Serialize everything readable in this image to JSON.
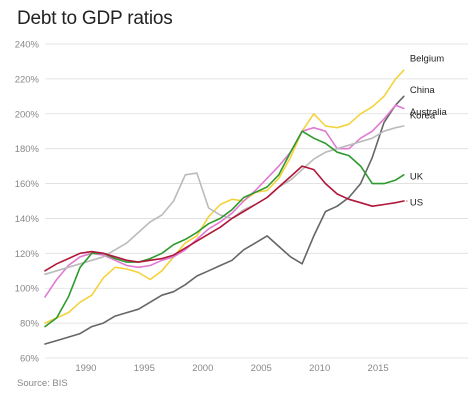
{
  "chart_data": {
    "type": "line",
    "title": "Debt to GDP ratios",
    "source": "Source: BIS",
    "xlabel": "",
    "ylabel": "",
    "xlim": [
      1986.5,
      2017.3
    ],
    "ylim": [
      60,
      240
    ],
    "y_ticks": [
      60,
      80,
      100,
      120,
      140,
      160,
      180,
      200,
      220,
      240
    ],
    "y_tick_labels": [
      "60%",
      "80%",
      "100%",
      "120%",
      "140%",
      "160%",
      "180%",
      "200%",
      "220%",
      "240%"
    ],
    "x_ticks": [
      1990,
      1995,
      2000,
      2005,
      2010,
      2015
    ],
    "x_tick_labels": [
      "1990",
      "1995",
      "2000",
      "2005",
      "2010",
      "2015"
    ],
    "grid": true,
    "legend": "direct labels at right",
    "series": [
      {
        "name": "Belgium",
        "color": "#f5d23c",
        "x": [
          1986.5,
          1987.5,
          1988.5,
          1989.5,
          1990.5,
          1991.5,
          1992.5,
          1993.5,
          1994.5,
          1995.5,
          1996.5,
          1997.5,
          1998.5,
          1999.5,
          2000.5,
          2001.5,
          2002.5,
          2003.5,
          2004.5,
          2005.5,
          2006.5,
          2007.5,
          2008.5,
          2009.5,
          2010.5,
          2011.5,
          2012.5,
          2013.5,
          2014.5,
          2015.5,
          2016.5,
          2017.2
        ],
        "y": [
          80,
          83,
          86,
          92,
          96,
          106,
          112,
          111,
          109,
          105,
          110,
          118,
          126,
          130,
          141,
          148,
          151,
          150,
          155,
          156,
          163,
          175,
          190,
          200,
          193,
          192,
          194,
          200,
          204,
          210,
          220,
          225
        ]
      },
      {
        "name": "China",
        "color": "#666666",
        "x": [
          1986.5,
          1987.5,
          1988.5,
          1989.5,
          1990.5,
          1991.5,
          1992.5,
          1993.5,
          1994.5,
          1995.5,
          1996.5,
          1997.5,
          1998.5,
          1999.5,
          2000.5,
          2001.5,
          2002.5,
          2003.5,
          2004.5,
          2005.5,
          2006.5,
          2007.5,
          2008.5,
          2009.5,
          2010.5,
          2011.5,
          2012.5,
          2013.5,
          2014.5,
          2015.5,
          2016.5,
          2017.2
        ],
        "y": [
          68,
          70,
          72,
          74,
          78,
          80,
          84,
          86,
          88,
          92,
          96,
          98,
          102,
          107,
          110,
          113,
          116,
          122,
          126,
          130,
          124,
          118,
          114,
          130,
          144,
          147,
          152,
          160,
          175,
          195,
          205,
          210
        ]
      },
      {
        "name": "Australia",
        "color": "#e07ad2",
        "x": [
          1986.5,
          1987.5,
          1988.5,
          1989.5,
          1990.5,
          1991.5,
          1992.5,
          1993.5,
          1994.5,
          1995.5,
          1996.5,
          1997.5,
          1998.5,
          1999.5,
          2000.5,
          2001.5,
          2002.5,
          2003.5,
          2004.5,
          2005.5,
          2006.5,
          2007.5,
          2008.5,
          2009.5,
          2010.5,
          2011.5,
          2012.5,
          2013.5,
          2014.5,
          2015.5,
          2016.5,
          2017.2
        ],
        "y": [
          95,
          105,
          113,
          118,
          120,
          119,
          116,
          113,
          112,
          113,
          116,
          118,
          122,
          128,
          134,
          138,
          143,
          150,
          156,
          163,
          170,
          178,
          190,
          192,
          190,
          180,
          180,
          186,
          190,
          197,
          205,
          203
        ]
      },
      {
        "name": "Korea",
        "color": "#bbbbbb",
        "x": [
          1986.5,
          1987.5,
          1988.5,
          1989.5,
          1990.5,
          1991.5,
          1992.5,
          1993.5,
          1994.5,
          1995.5,
          1996.5,
          1997.5,
          1998.5,
          1999.5,
          2000.5,
          2001.5,
          2002.5,
          2003.5,
          2004.5,
          2005.5,
          2006.5,
          2007.5,
          2008.5,
          2009.5,
          2010.5,
          2011.5,
          2012.5,
          2013.5,
          2014.5,
          2015.5,
          2016.5,
          2017.2
        ],
        "y": [
          108,
          110,
          112,
          114,
          116,
          118,
          122,
          126,
          132,
          138,
          142,
          150,
          165,
          166,
          146,
          142,
          140,
          145,
          148,
          152,
          158,
          162,
          168,
          174,
          178,
          180,
          182,
          184,
          186,
          190,
          192,
          193
        ]
      },
      {
        "name": "UK",
        "color": "#2f9a2f",
        "x": [
          1986.5,
          1987.5,
          1988.5,
          1989.5,
          1990.5,
          1991.5,
          1992.5,
          1993.5,
          1994.5,
          1995.5,
          1996.5,
          1997.5,
          1998.5,
          1999.5,
          2000.5,
          2001.5,
          2002.5,
          2003.5,
          2004.5,
          2005.5,
          2006.5,
          2007.5,
          2008.5,
          2009.5,
          2010.5,
          2011.5,
          2012.5,
          2013.5,
          2014.5,
          2015.5,
          2016.5,
          2017.2
        ],
        "y": [
          78,
          83,
          95,
          112,
          120,
          120,
          117,
          115,
          115,
          117,
          120,
          125,
          128,
          132,
          137,
          140,
          145,
          152,
          155,
          158,
          165,
          178,
          190,
          186,
          183,
          178,
          176,
          170,
          160,
          160,
          162,
          165
        ]
      },
      {
        "name": "US",
        "color": "#b0173a",
        "x": [
          1986.5,
          1987.5,
          1988.5,
          1989.5,
          1990.5,
          1991.5,
          1992.5,
          1993.5,
          1994.5,
          1995.5,
          1996.5,
          1997.5,
          1998.5,
          1999.5,
          2000.5,
          2001.5,
          2002.5,
          2003.5,
          2004.5,
          2005.5,
          2006.5,
          2007.5,
          2008.5,
          2009.5,
          2010.5,
          2011.5,
          2012.5,
          2013.5,
          2014.5,
          2015.5,
          2016.5,
          2017.2
        ],
        "y": [
          110,
          114,
          117,
          120,
          121,
          120,
          118,
          116,
          115,
          116,
          117,
          119,
          123,
          127,
          131,
          135,
          140,
          144,
          148,
          152,
          158,
          164,
          170,
          168,
          160,
          154,
          151,
          149,
          147,
          148,
          149,
          150
        ]
      }
    ]
  }
}
